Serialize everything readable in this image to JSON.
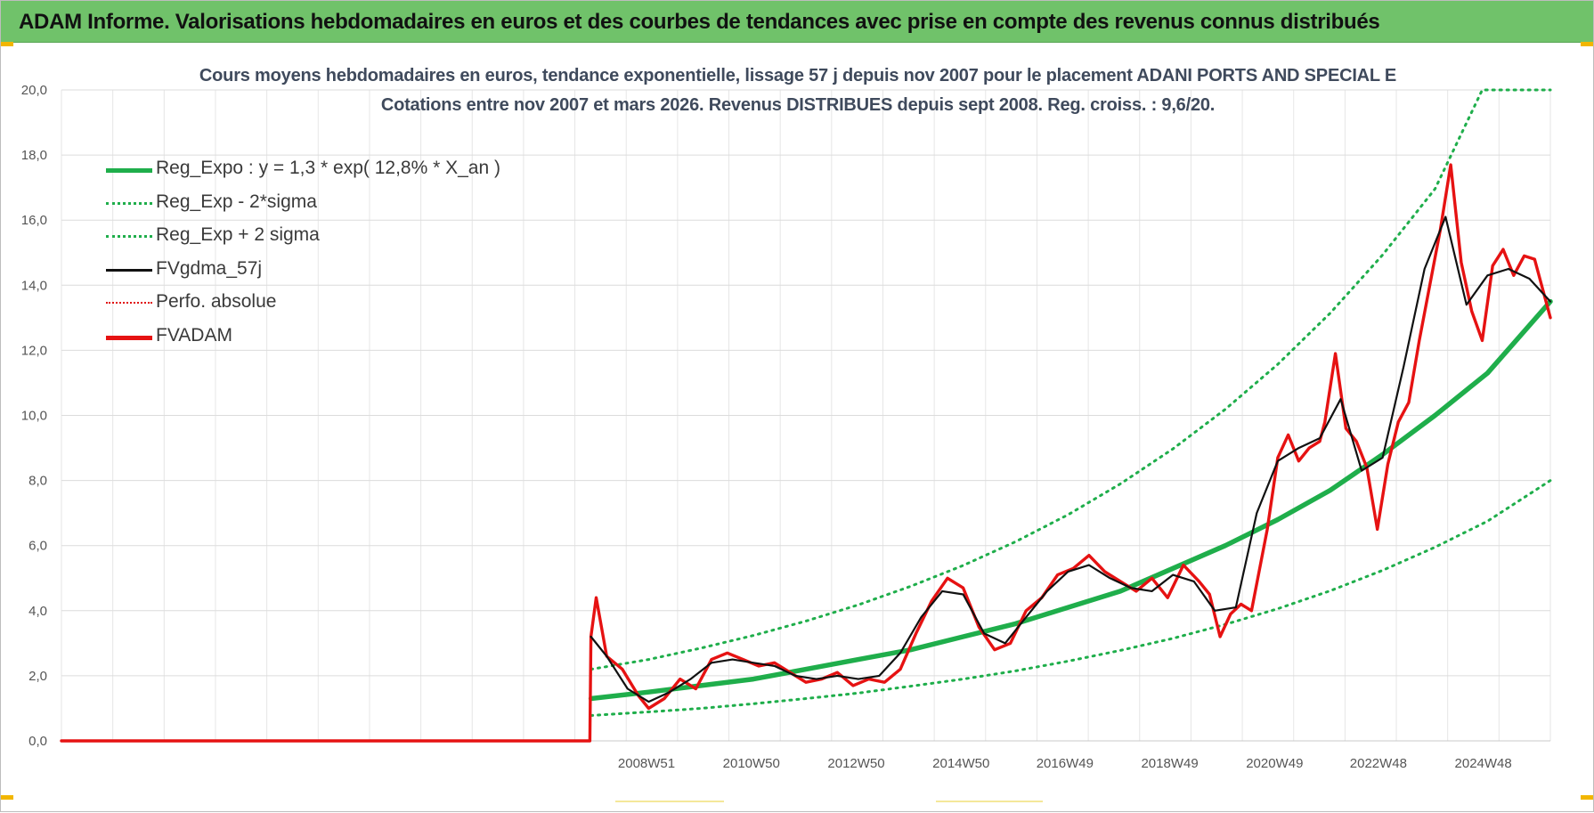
{
  "banner": {
    "title": "ADAM Informe. Valorisations hebdomadaires en euros et des courbes de tendances avec prise en compte des revenus connus distribués"
  },
  "chart_data": {
    "type": "line",
    "title": "Cours moyens hebdomadaires en euros, tendance exponentielle, lissage 57 j depuis nov 2007 pour le placement ADANI PORTS AND SPECIAL E",
    "subtitle": "Cotations entre nov 2007 et mars 2026. Revenus DISTRIBUES depuis sept 2008. Reg. croiss. : 9,6/20.",
    "ylim": [
      0,
      20
    ],
    "yticks": [
      "0,0",
      "2,0",
      "4,0",
      "6,0",
      "8,0",
      "10,0",
      "12,0",
      "14,0",
      "16,0",
      "18,0",
      "20,0"
    ],
    "xlim": [
      1997.8,
      2026.2
    ],
    "xticks": [
      {
        "label": "2008W51",
        "x": 2008.96
      },
      {
        "label": "2010W50",
        "x": 2010.96
      },
      {
        "label": "2012W50",
        "x": 2012.96
      },
      {
        "label": "2014W50",
        "x": 2014.96
      },
      {
        "label": "2016W49",
        "x": 2016.94
      },
      {
        "label": "2018W49",
        "x": 2018.94
      },
      {
        "label": "2020W49",
        "x": 2020.94
      },
      {
        "label": "2022W48",
        "x": 2022.92
      },
      {
        "label": "2024W48",
        "x": 2024.92
      }
    ],
    "grid": true,
    "legend_position": "top-left",
    "series": [
      {
        "name": "Reg_Expo : y = 1,3 * exp( 12,8% *  X_an )",
        "color": "#1fae4b",
        "style": "solid-thick",
        "x": [
          2007.9,
          2009,
          2010,
          2011,
          2012,
          2013,
          2014,
          2015,
          2016,
          2017,
          2018,
          2019,
          2020,
          2021,
          2022,
          2023,
          2024,
          2025,
          2026.2
        ],
        "values": [
          1.3,
          1.5,
          1.7,
          1.9,
          2.2,
          2.5,
          2.8,
          3.2,
          3.6,
          4.1,
          4.6,
          5.3,
          6.0,
          6.8,
          7.7,
          8.8,
          10.0,
          11.3,
          13.5
        ]
      },
      {
        "name": "Reg_Exp - 2*sigma",
        "color": "#1fae4b",
        "style": "dotted",
        "x": [
          2007.9,
          2009,
          2010,
          2011,
          2012,
          2013,
          2014,
          2015,
          2016,
          2017,
          2018,
          2019,
          2020,
          2021,
          2022,
          2023,
          2024,
          2025,
          2026.2
        ],
        "values": [
          0.78,
          0.89,
          1.0,
          1.14,
          1.3,
          1.47,
          1.68,
          1.9,
          2.15,
          2.45,
          2.78,
          3.15,
          3.58,
          4.06,
          4.61,
          5.24,
          5.95,
          6.75,
          8.0
        ]
      },
      {
        "name": "Reg_Exp + 2 sigma",
        "color": "#1fae4b",
        "style": "dotted",
        "x": [
          2007.9,
          2009,
          2010,
          2011,
          2012,
          2013,
          2014,
          2015,
          2016,
          2017,
          2018,
          2019,
          2020,
          2021,
          2022,
          2023,
          2024,
          2024.9,
          2026.2
        ],
        "values": [
          2.2,
          2.5,
          2.85,
          3.24,
          3.68,
          4.18,
          4.75,
          5.39,
          6.12,
          6.95,
          7.9,
          8.97,
          10.19,
          11.57,
          13.14,
          14.93,
          16.96,
          20.0,
          20.0
        ]
      },
      {
        "name": "FVgdma_57j",
        "color": "#111111",
        "style": "solid",
        "x": [
          2007.9,
          2008.2,
          2008.6,
          2009.0,
          2009.4,
          2009.8,
          2010.2,
          2010.6,
          2011.0,
          2011.4,
          2011.8,
          2012.2,
          2012.6,
          2013.0,
          2013.4,
          2013.8,
          2014.2,
          2014.6,
          2015.0,
          2015.4,
          2015.8,
          2016.2,
          2016.6,
          2017.0,
          2017.4,
          2017.8,
          2018.2,
          2018.6,
          2019.0,
          2019.4,
          2019.8,
          2020.2,
          2020.6,
          2021.0,
          2021.4,
          2021.8,
          2022.2,
          2022.6,
          2023.0,
          2023.4,
          2023.8,
          2024.2,
          2024.6,
          2025.0,
          2025.4,
          2025.8,
          2026.2
        ],
        "values": [
          3.2,
          2.6,
          1.6,
          1.2,
          1.5,
          1.9,
          2.4,
          2.5,
          2.4,
          2.3,
          2.0,
          1.9,
          2.0,
          1.9,
          2.0,
          2.7,
          3.8,
          4.6,
          4.5,
          3.3,
          3.0,
          3.8,
          4.6,
          5.2,
          5.4,
          5.0,
          4.7,
          4.6,
          5.1,
          4.9,
          4.0,
          4.1,
          7.0,
          8.6,
          9.0,
          9.3,
          10.5,
          8.3,
          8.7,
          11.5,
          14.5,
          16.1,
          13.4,
          14.3,
          14.5,
          14.2,
          13.5
        ]
      },
      {
        "name": "Perfo. absolue",
        "color": "#e01010",
        "style": "dotted",
        "x": [],
        "values": []
      },
      {
        "name": "FVADAM",
        "color": "#e61212",
        "style": "solid-thick",
        "x": [
          1997.8,
          2007.88,
          2007.9,
          2008.0,
          2008.2,
          2008.5,
          2008.8,
          2009.0,
          2009.3,
          2009.6,
          2009.9,
          2010.2,
          2010.5,
          2010.8,
          2011.1,
          2011.4,
          2011.7,
          2012.0,
          2012.3,
          2012.6,
          2012.9,
          2013.2,
          2013.5,
          2013.8,
          2014.1,
          2014.4,
          2014.7,
          2015.0,
          2015.3,
          2015.6,
          2015.9,
          2016.2,
          2016.5,
          2016.8,
          2017.1,
          2017.4,
          2017.7,
          2018.0,
          2018.3,
          2018.6,
          2018.9,
          2019.2,
          2019.5,
          2019.7,
          2019.9,
          2020.1,
          2020.3,
          2020.5,
          2020.8,
          2021.0,
          2021.2,
          2021.4,
          2021.6,
          2021.8,
          2021.9,
          2022.1,
          2022.3,
          2022.5,
          2022.7,
          2022.9,
          2023.1,
          2023.3,
          2023.5,
          2023.7,
          2023.9,
          2024.1,
          2024.3,
          2024.5,
          2024.7,
          2024.9,
          2025.1,
          2025.3,
          2025.5,
          2025.7,
          2025.9,
          2026.2
        ],
        "values": [
          0.0,
          0.0,
          3.2,
          4.4,
          2.6,
          2.2,
          1.4,
          1.0,
          1.3,
          1.9,
          1.6,
          2.5,
          2.7,
          2.5,
          2.3,
          2.4,
          2.1,
          1.8,
          1.9,
          2.1,
          1.7,
          1.9,
          1.8,
          2.2,
          3.3,
          4.3,
          5.0,
          4.7,
          3.5,
          2.8,
          3.0,
          4.0,
          4.4,
          5.1,
          5.3,
          5.7,
          5.2,
          4.9,
          4.6,
          5.0,
          4.4,
          5.4,
          4.9,
          4.5,
          3.2,
          3.9,
          4.2,
          4.0,
          6.5,
          8.7,
          9.4,
          8.6,
          9.0,
          9.2,
          9.8,
          11.9,
          9.6,
          9.2,
          8.4,
          6.5,
          8.5,
          9.8,
          10.4,
          12.3,
          14.0,
          15.7,
          17.7,
          14.7,
          13.2,
          12.3,
          14.6,
          15.1,
          14.3,
          14.9,
          14.8,
          13.0
        ]
      }
    ]
  }
}
